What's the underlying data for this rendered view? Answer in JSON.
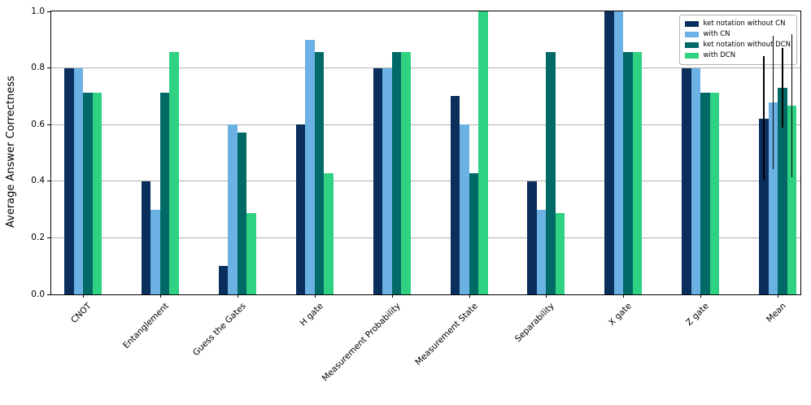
{
  "chart_data": {
    "type": "bar",
    "title": "",
    "xlabel": "",
    "ylabel": "Average Answer Correctness",
    "ylim": [
      0.0,
      1.0
    ],
    "yticks": [
      "0.0",
      "0.2",
      "0.4",
      "0.6",
      "0.8",
      "1.0"
    ],
    "grid": "horizontal",
    "gridline_color": "#b0b0b0",
    "legend_position": "upper right",
    "categories": [
      "CNOT",
      "Entanglement",
      "Guess the Gates",
      "H gate",
      "Measurement Probability",
      "Measurement State",
      "Separability",
      "X gate",
      "Z gate",
      "Mean"
    ],
    "series": [
      {
        "name": "ket notation without CN",
        "color": "#0a2f5c",
        "values": [
          0.8,
          0.4,
          0.1,
          0.6,
          0.8,
          0.7,
          0.4,
          1.0,
          0.8,
          0.622
        ]
      },
      {
        "name": "with CN",
        "color": "#6cb1e3",
        "values": [
          0.8,
          0.3,
          0.6,
          0.9,
          0.8,
          0.6,
          0.3,
          1.0,
          0.8,
          0.678
        ]
      },
      {
        "name": "ket notation without DCN",
        "color": "#026a66",
        "values": [
          0.714,
          0.714,
          0.571,
          0.857,
          0.857,
          0.429,
          0.857,
          0.857,
          0.714,
          0.73
        ]
      },
      {
        "name": "with DCN",
        "color": "#2fd183",
        "values": [
          0.714,
          0.857,
          0.286,
          0.429,
          0.857,
          1.0,
          0.286,
          0.857,
          0.714,
          0.667
        ]
      }
    ],
    "error_bars": {
      "category": "Mean",
      "per_series": [
        0.22,
        0.235,
        0.142,
        0.252
      ]
    }
  }
}
